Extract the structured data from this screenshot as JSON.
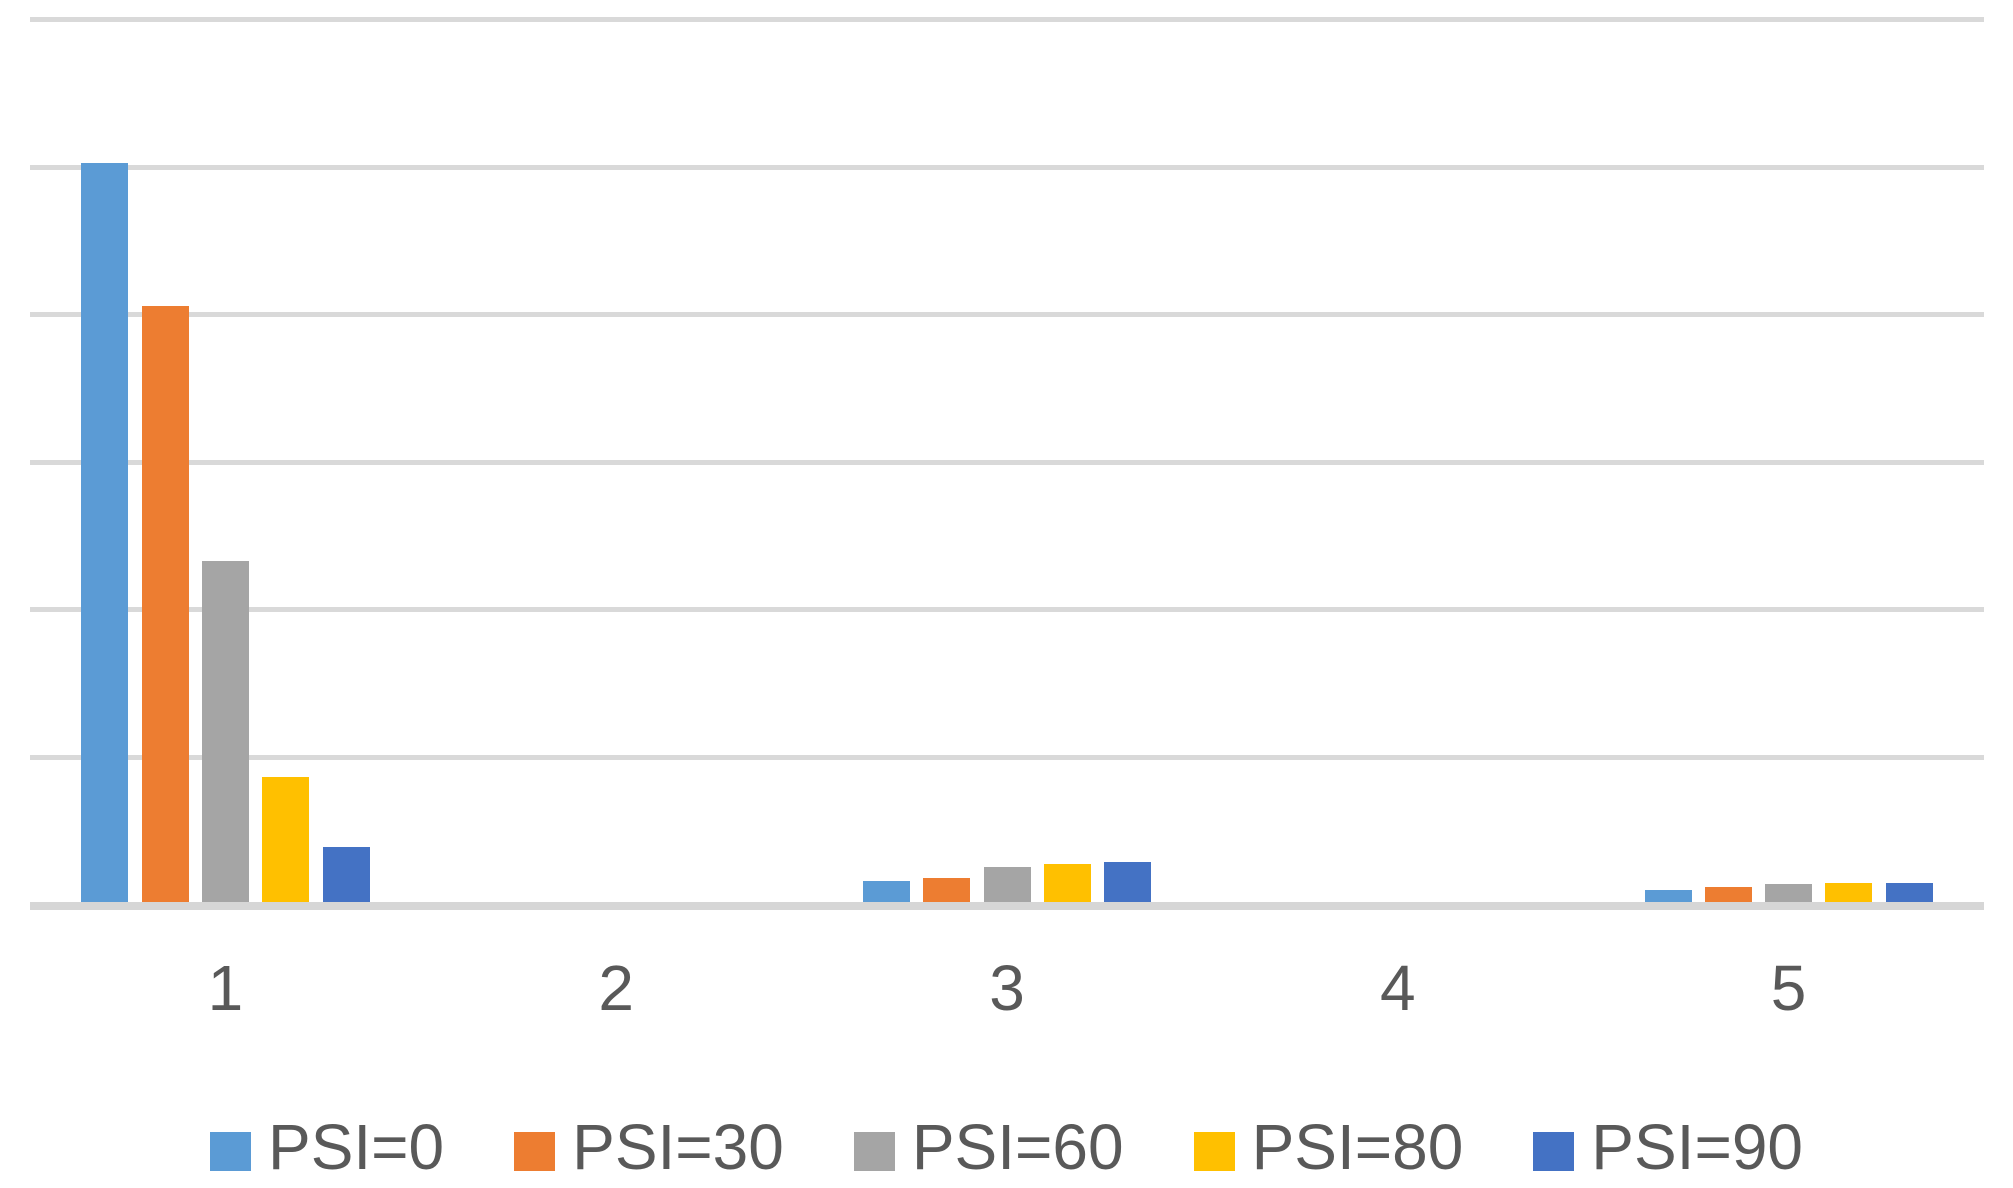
{
  "chart_data": {
    "type": "bar",
    "title": "",
    "xlabel": "",
    "ylabel": "",
    "categories": [
      "1",
      "2",
      "3",
      "4",
      "5"
    ],
    "series": [
      {
        "name": "PSI=0",
        "color": "#5B9BD5",
        "values": [
          5.01,
          0,
          0.14,
          0,
          0.08
        ]
      },
      {
        "name": "PSI=30",
        "color": "#ED7D31",
        "values": [
          4.04,
          0,
          0.16,
          0,
          0.1
        ]
      },
      {
        "name": "PSI=60",
        "color": "#A5A5A5",
        "values": [
          2.31,
          0,
          0.24,
          0,
          0.12
        ]
      },
      {
        "name": "PSI=80",
        "color": "#FFC000",
        "values": [
          0.85,
          0,
          0.26,
          0,
          0.13
        ]
      },
      {
        "name": "PSI=90",
        "color": "#4472C4",
        "values": [
          0.37,
          0,
          0.27,
          0,
          0.13
        ]
      }
    ],
    "ylim": [
      0,
      6
    ],
    "gridline_interval": 1,
    "y_tick_labels_visible": false,
    "grid": true,
    "gridline_color": "#D9D9D9",
    "axis_line_color": "#D6D6D6",
    "label_color": "#595959",
    "legend_position": "bottom",
    "legend_entries": [
      "PSI=0",
      "PSI=30",
      "PSI=60",
      "PSI=80",
      "PSI=90"
    ]
  }
}
